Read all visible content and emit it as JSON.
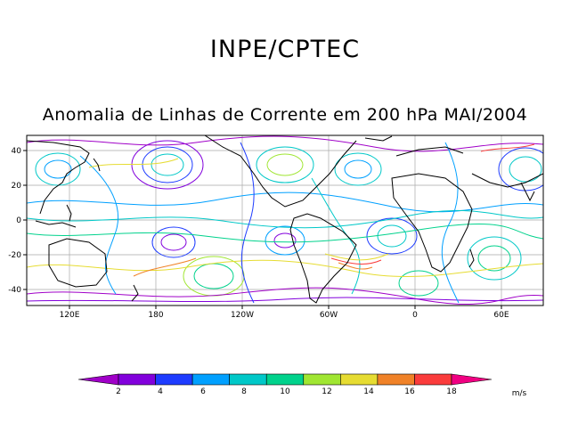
{
  "header": {
    "org": "INPE/CPTEC",
    "title": "Anomalia de Linhas de Corrente em 200 hPa MAI/2004"
  },
  "map": {
    "lat_ticks": [
      "40",
      "20",
      "0",
      "-20",
      "-40"
    ],
    "lon_ticks": [
      "120E",
      "180",
      "120W",
      "60W",
      "0",
      "60E"
    ],
    "colors": {
      "frame": "#000000",
      "grid": "#a9a9a9",
      "coast": "#000000"
    }
  },
  "colorbar": {
    "labels": [
      "2",
      "4",
      "6",
      "8",
      "10",
      "12",
      "14",
      "16",
      "18"
    ],
    "unit": "m/s",
    "colors": [
      "#a000c8",
      "#8200dc",
      "#1e3cff",
      "#00a0ff",
      "#00c8c8",
      "#00d28c",
      "#a0e632",
      "#e6dc32",
      "#f08228",
      "#fa3c3c",
      "#f00082"
    ]
  }
}
